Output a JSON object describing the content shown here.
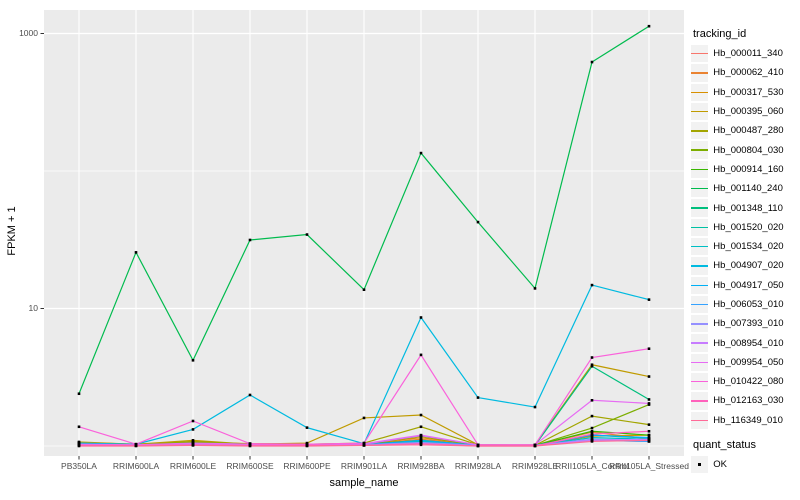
{
  "chart_data": {
    "type": "line",
    "title": "",
    "xlabel": "sample_name",
    "ylabel": "FPKM + 1",
    "y_scale": "log10",
    "ylim": [
      1,
      1200
    ],
    "grid": true,
    "legend_position": "right",
    "point_shape": "square",
    "colors": {
      "panel": "#EBEBEB",
      "grid": "#FFFFFF",
      "tick": "#333333",
      "tick_text": "#4D4D4D",
      "point": "#000000",
      "key_bg": "#F2F2F2"
    },
    "yticks": [
      {
        "v": 10,
        "label": "10"
      },
      {
        "v": 1000,
        "label": "1000"
      }
    ],
    "yminor": [
      1,
      100
    ],
    "categories": [
      "PB350LA",
      "RRIM600LA",
      "RRIM600LE",
      "RRIM600SE",
      "RRIM600PE",
      "RRIM901LA",
      "RRIM928BA",
      "RRIM928LA",
      "RRIM928LE",
      "RRII105LA_Control",
      "RRII105LA_Stressed"
    ],
    "legend": {
      "tracking_title": "tracking_id",
      "quant_title": "quant_status",
      "quant_ok": "OK"
    },
    "series": [
      {
        "name": "Hb_000011_340",
        "color": "#F8766D",
        "values": [
          1.04,
          1.02,
          1.04,
          1.03,
          1.02,
          1.03,
          1.08,
          1.01,
          1.01,
          1.1,
          1.08
        ]
      },
      {
        "name": "Hb_000062_410",
        "color": "#EA8331",
        "values": [
          1.05,
          1.02,
          1.05,
          1.04,
          1.03,
          1.03,
          1.12,
          1.02,
          1.01,
          1.26,
          1.13
        ]
      },
      {
        "name": "Hb_000317_530",
        "color": "#D89000",
        "values": [
          1.06,
          1.03,
          1.06,
          1.04,
          1.03,
          1.04,
          1.15,
          1.02,
          1.01,
          1.18,
          1.2
        ]
      },
      {
        "name": "Hb_000395_060",
        "color": "#C09B00",
        "values": [
          1.07,
          1.03,
          1.1,
          1.03,
          1.05,
          1.6,
          1.68,
          1.02,
          1.02,
          3.9,
          3.2
        ]
      },
      {
        "name": "Hb_000487_280",
        "color": "#A3A500",
        "values": [
          1.05,
          1.02,
          1.08,
          1.03,
          1.03,
          1.05,
          1.38,
          1.02,
          1.01,
          1.65,
          1.43
        ]
      },
      {
        "name": "Hb_000804_030",
        "color": "#7CAE00",
        "values": [
          1.04,
          1.02,
          1.06,
          1.03,
          1.02,
          1.03,
          1.18,
          1.01,
          1.01,
          1.35,
          2.0
        ]
      },
      {
        "name": "Hb_000914_160",
        "color": "#39B600",
        "values": [
          1.03,
          1.02,
          1.04,
          1.02,
          1.02,
          1.03,
          1.1,
          1.01,
          1.01,
          1.28,
          1.2
        ]
      },
      {
        "name": "Hb_001140_240",
        "color": "#00BB4E",
        "values": [
          2.4,
          25.6,
          4.2,
          31.5,
          34.5,
          13.7,
          135,
          42.5,
          14.0,
          620,
          1130
        ]
      },
      {
        "name": "Hb_001348_110",
        "color": "#00BF7D",
        "values": [
          1.03,
          1.01,
          1.03,
          1.02,
          1.02,
          1.02,
          1.08,
          1.01,
          1.01,
          3.8,
          2.18
        ]
      },
      {
        "name": "Hb_001520_020",
        "color": "#00C1A3",
        "values": [
          1.03,
          1.01,
          1.02,
          1.02,
          1.01,
          1.02,
          1.06,
          1.01,
          1.01,
          1.2,
          1.14
        ]
      },
      {
        "name": "Hb_001534_020",
        "color": "#00BFC4",
        "values": [
          1.02,
          1.01,
          1.03,
          1.02,
          1.02,
          1.02,
          1.08,
          1.01,
          1.01,
          1.15,
          1.12
        ]
      },
      {
        "name": "Hb_004907_020",
        "color": "#00BAE0",
        "values": [
          1.05,
          1.03,
          1.32,
          2.35,
          1.36,
          1.04,
          8.6,
          2.25,
          1.92,
          14.8,
          11.6
        ]
      },
      {
        "name": "Hb_004917_050",
        "color": "#00B0F6",
        "values": [
          1.03,
          1.02,
          1.04,
          1.03,
          1.02,
          1.02,
          1.1,
          1.01,
          1.01,
          1.2,
          1.15
        ]
      },
      {
        "name": "Hb_006053_010",
        "color": "#35A2FF",
        "values": [
          1.02,
          1.01,
          1.03,
          1.02,
          1.01,
          1.02,
          1.05,
          1.01,
          1.01,
          1.1,
          1.08
        ]
      },
      {
        "name": "Hb_007393_010",
        "color": "#9590FF",
        "values": [
          1.02,
          1.01,
          1.03,
          1.02,
          1.02,
          1.02,
          1.06,
          1.01,
          1.01,
          1.12,
          1.1
        ]
      },
      {
        "name": "Hb_008954_010",
        "color": "#C77CFF",
        "values": [
          1.02,
          1.02,
          1.04,
          1.03,
          1.02,
          1.03,
          1.19,
          1.02,
          1.01,
          1.1,
          1.12
        ]
      },
      {
        "name": "Hb_009954_050",
        "color": "#E76BF3",
        "values": [
          1.03,
          1.02,
          1.05,
          1.03,
          1.03,
          1.04,
          1.2,
          1.02,
          1.02,
          2.15,
          2.04
        ]
      },
      {
        "name": "Hb_010422_080",
        "color": "#FA62DB",
        "values": [
          1.38,
          1.03,
          1.52,
          1.04,
          1.03,
          1.05,
          4.6,
          1.02,
          1.02,
          4.4,
          5.1
        ]
      },
      {
        "name": "Hb_012163_030",
        "color": "#FF62BC",
        "values": [
          1.01,
          1.01,
          1.02,
          1.01,
          1.01,
          1.01,
          1.04,
          1.0,
          1.0,
          1.22,
          1.28
        ]
      },
      {
        "name": "Hb_116349_010",
        "color": "#FF6A98",
        "values": [
          1.0,
          1.0,
          1.01,
          1.0,
          1.0,
          1.01,
          1.02,
          1.0,
          1.0,
          1.08,
          1.1
        ]
      }
    ]
  }
}
